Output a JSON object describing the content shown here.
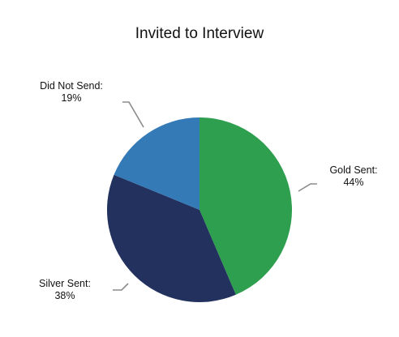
{
  "chart_data": {
    "type": "pie",
    "title": "Invited to Interview",
    "slices": [
      {
        "name": "Gold Sent",
        "label": "Gold Sent:",
        "value_label": "44%",
        "value": 44,
        "color": "#2e9e4f"
      },
      {
        "name": "Silver Sent",
        "label": "Silver Sent:",
        "value_label": "38%",
        "value": 38,
        "color": "#22315e"
      },
      {
        "name": "Did Not Send",
        "label": "Did Not Send:",
        "value_label": "19%",
        "value": 19,
        "color": "#337ab7"
      }
    ],
    "legend": "none",
    "start_angle_deg": 0,
    "direction": "clockwise"
  }
}
